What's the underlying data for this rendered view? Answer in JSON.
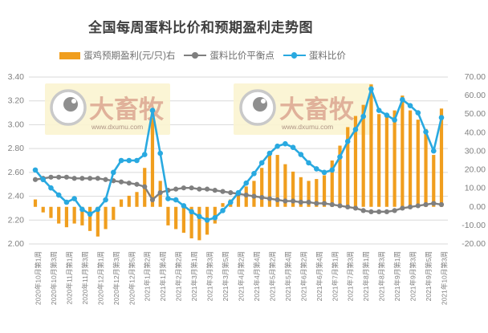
{
  "title": "全国每周蛋料比价和预期盈利走势图",
  "legend": {
    "items": [
      {
        "label": "蛋鸡预期盈利(元/只)右",
        "marker": "bar-swatch"
      },
      {
        "label": "蛋料比价平衡点",
        "marker": "line-dot"
      },
      {
        "label": "蛋料比价",
        "marker": "line-dot"
      }
    ]
  },
  "watermark": {
    "brand": "大畜牧",
    "url": "www.dxumu.com"
  },
  "colors": {
    "bar": "#F09E1E",
    "balance": "#7F7F7F",
    "ratio": "#29A9E0",
    "grid": "#D9D9D9",
    "axis_label": "#808080",
    "title": "#3F3F3F",
    "watermark_bg": "#FBF4CF",
    "watermark_text": "rgba(197,110,96,0.5)"
  },
  "chart_data": {
    "type": "combo bar+line",
    "n_points": 53,
    "x_label_step": 2,
    "x_labels": [
      "2020年10月第1周",
      "2020年10月第3周",
      "2020年11月第1周",
      "2020年11月第3周",
      "2020年12月第1周",
      "2020年12月第3周",
      "2020年12月第5周",
      "2021年1月第2周",
      "2021年1月第4周",
      "2021年2月第2周",
      "2021年3月第1周",
      "2021年3月第3周",
      "2021年3月第5周",
      "2021年4月第2周",
      "2021年4月第4周",
      "2021年5月第2周",
      "2021年5月第4周",
      "2021年6月第2周",
      "2021年6月第4周",
      "2021年7月第1周",
      "2021年7月第3周",
      "2021年8月第1周",
      "2021年8月第3周",
      "2021年9月第1周",
      "2021年9月第3周",
      "2021年9月第5周",
      "2021年10月第3周"
    ],
    "left_axis": {
      "min": 2.0,
      "max": 3.4,
      "step": 0.2,
      "ticks": [
        "2.00",
        "2.20",
        "2.40",
        "2.60",
        "2.80",
        "3.00",
        "3.20",
        "3.40"
      ]
    },
    "right_axis": {
      "min": -20,
      "max": 70,
      "step": 10,
      "ticks": [
        "-20.00",
        "-10.00",
        "0.00",
        "10.00",
        "20.00",
        "30.00",
        "40.00",
        "50.00",
        "60.00",
        "70.00"
      ]
    },
    "grid": "horizontal-only",
    "legend_position": "top",
    "series": [
      {
        "name": "蛋鸡预期盈利(元/只)右",
        "type": "bar",
        "axis": "right",
        "values": [
          4,
          -3,
          -6,
          -9,
          -11,
          -9,
          -10,
          -13,
          -16,
          -12,
          -7,
          4,
          6,
          8,
          21,
          48,
          14,
          -10,
          -12,
          -14,
          -17,
          -18,
          -15,
          -9,
          2,
          4,
          8,
          11,
          14,
          21,
          30,
          28,
          23,
          19,
          16,
          14,
          15,
          17,
          25,
          33,
          43,
          49,
          55,
          66,
          50,
          49,
          52,
          60,
          52,
          47,
          42,
          28,
          53
        ]
      },
      {
        "name": "蛋料比价平衡点",
        "type": "line",
        "axis": "left",
        "values": [
          2.54,
          2.55,
          2.56,
          2.56,
          2.56,
          2.55,
          2.55,
          2.55,
          2.55,
          2.54,
          2.53,
          2.52,
          2.51,
          2.5,
          2.48,
          2.37,
          2.43,
          2.45,
          2.46,
          2.47,
          2.47,
          2.46,
          2.46,
          2.45,
          2.44,
          2.43,
          2.42,
          2.41,
          2.4,
          2.39,
          2.38,
          2.37,
          2.36,
          2.36,
          2.35,
          2.35,
          2.34,
          2.34,
          2.33,
          2.32,
          2.31,
          2.3,
          2.28,
          2.27,
          2.27,
          2.27,
          2.28,
          2.3,
          2.31,
          2.32,
          2.33,
          2.34,
          2.33
        ]
      },
      {
        "name": "蛋料比价",
        "type": "line",
        "axis": "left",
        "values": [
          2.62,
          2.54,
          2.47,
          2.41,
          2.35,
          2.38,
          2.29,
          2.25,
          2.29,
          2.37,
          2.6,
          2.7,
          2.7,
          2.7,
          2.75,
          3.12,
          2.76,
          2.38,
          2.37,
          2.32,
          2.27,
          2.23,
          2.2,
          2.22,
          2.28,
          2.35,
          2.43,
          2.51,
          2.59,
          2.68,
          2.76,
          2.82,
          2.84,
          2.81,
          2.75,
          2.68,
          2.63,
          2.6,
          2.62,
          2.73,
          2.86,
          2.96,
          3.07,
          3.3,
          3.12,
          3.08,
          3.04,
          3.21,
          3.16,
          3.1,
          2.94,
          2.78,
          3.06
        ]
      }
    ]
  }
}
